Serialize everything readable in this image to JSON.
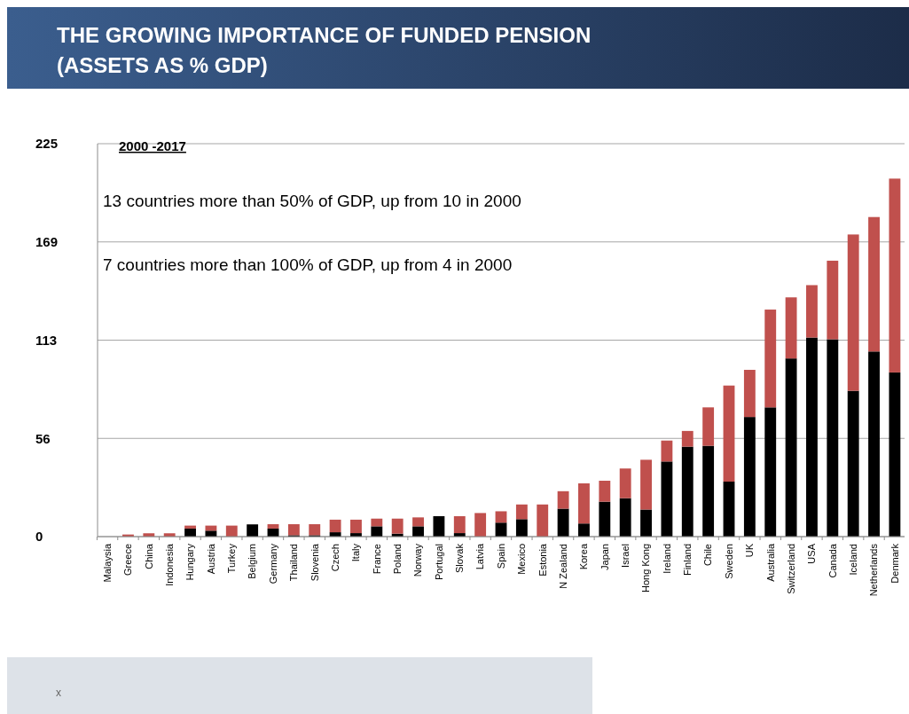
{
  "chart_data": {
    "type": "bar",
    "title": "THE GROWING IMPORTANCE OF FUNDED PENSION\n(ASSETS AS % GDP)",
    "stacked": true,
    "grid": "y",
    "categories": [
      "Malaysia",
      "Greece",
      "China",
      "Indonesia",
      "Hungary",
      "Austria",
      "Turkey",
      "Belgium",
      "Germany",
      "Thailand",
      "Slovenia",
      "Czech",
      "Italy",
      "France",
      "Poland",
      "Norway",
      "Portugal",
      "Slovak",
      "Latvia",
      "Spain",
      "Mexico",
      "Estonia",
      "N Zealand",
      "Korea",
      "Japan",
      "Israel",
      "Hong Kong",
      "Ireland",
      "Finland",
      "Chile",
      "Sweden",
      "UK",
      "Australia",
      "Switzerland",
      "USA",
      "Canada",
      "Iceland",
      "Netherlands",
      "Denmark"
    ],
    "series": [
      {
        "color": "#000000",
        "values": [
          null,
          null,
          null,
          null,
          4.6,
          3.4,
          null,
          7,
          4.6,
          0.8,
          0.8,
          2.5,
          2,
          5.9,
          1.7,
          5.9,
          11.7,
          2,
          null,
          8,
          10,
          null,
          16,
          7.5,
          20,
          22,
          15.5,
          43,
          51.5,
          52,
          31.5,
          68.5,
          74,
          102,
          114,
          113,
          83.5,
          106,
          94
        ]
      },
      {
        "color": "#c0504d",
        "values": [
          null,
          1.2,
          1.9,
          1.9,
          1.7,
          2.9,
          6.3,
          0,
          2.5,
          6.3,
          6.3,
          7.2,
          7.7,
          4.4,
          8.6,
          5.1,
          0,
          9.7,
          13.5,
          6.5,
          8.4,
          18.4,
          10,
          23,
          12,
          17,
          28.5,
          12,
          9,
          22,
          55,
          27,
          56,
          35,
          30,
          45,
          89.5,
          77,
          111
        ]
      }
    ],
    "ylim": [
      0,
      225
    ],
    "yticks": [
      0,
      {
        "value": 56.25,
        "label": "56"
      },
      {
        "value": 112.5,
        "label": "113"
      },
      {
        "value": 168.75,
        "label": "169"
      },
      225
    ],
    "annotations": [
      "2000 -2017",
      "13 countries more than 50% of GDP, up from 10 in 2000",
      "7 countries more than 100% of GDP, up from 4 in 2000",
      "x"
    ]
  }
}
